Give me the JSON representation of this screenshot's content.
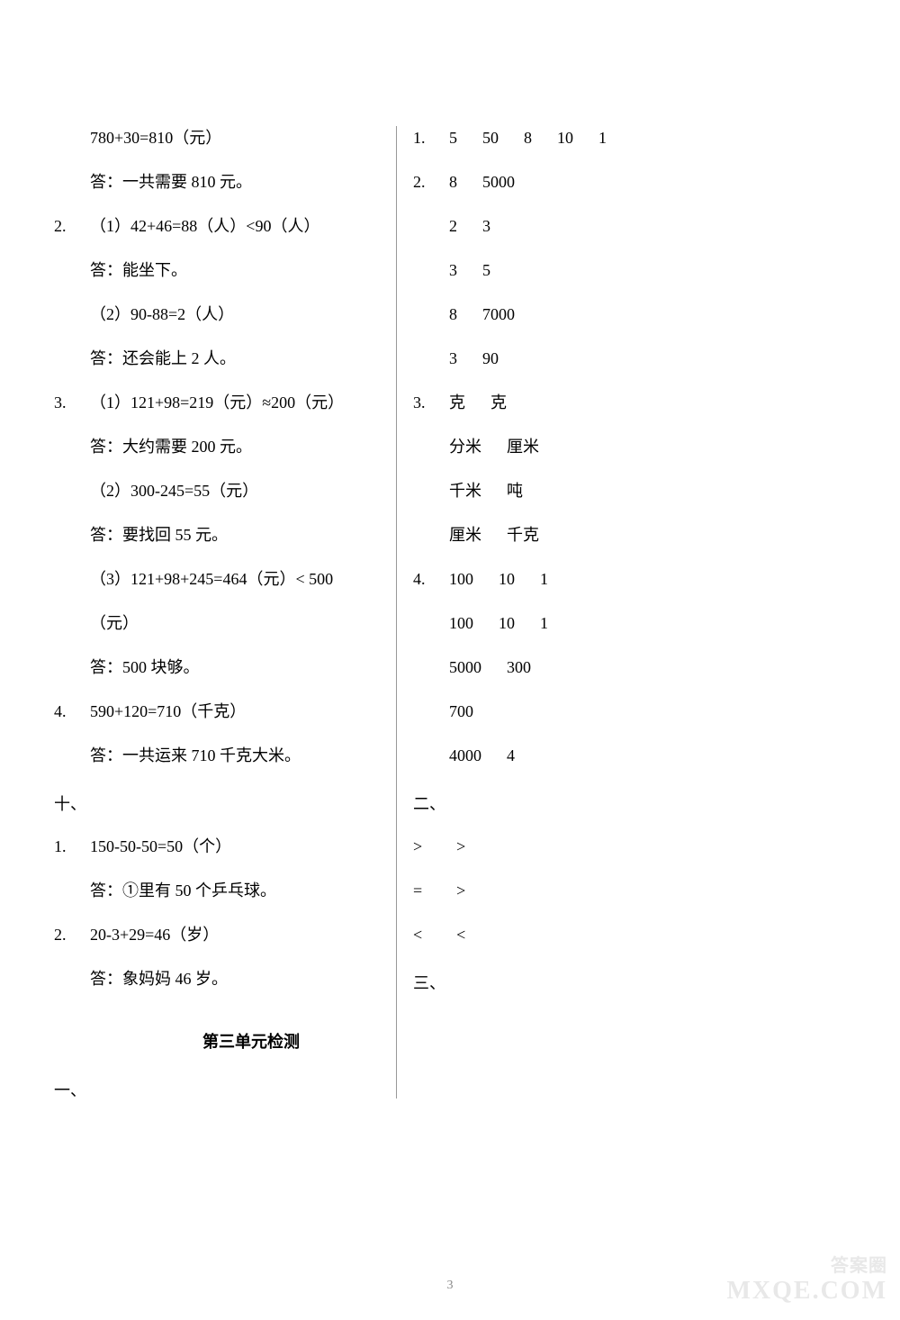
{
  "left": {
    "l1": "780+30=810（元）",
    "l2": "答：一共需要 810 元。",
    "n2": "2.",
    "l3": "（1）42+46=88（人）<90（人）",
    "l4": "答：能坐下。",
    "l5": "（2）90-88=2（人）",
    "l6": "答：还会能上 2 人。",
    "n3": "3.",
    "l7": "（1）121+98=219（元）≈200（元）",
    "l8": "答：大约需要 200 元。",
    "l9": "（2）300-245=55（元）",
    "l10": "答：要找回 55 元。",
    "l11": "（3）121+98+245=464（元）< 500",
    "l12": "（元）",
    "l13": "答：500 块够。",
    "n4": "4.",
    "l14": "590+120=710（千克）",
    "l15": "答：一共运来 710 千克大米。",
    "s10": "十、",
    "n10_1": "1.",
    "l16": "150-50-50=50（个）",
    "l17": "答：①里有 50 个乒乓球。",
    "n10_2": "2.",
    "l18": "20-3+29=46（岁）",
    "l19": "答：象妈妈 46 岁。",
    "unit_title": "第三单元检测",
    "s1": "一、"
  },
  "right": {
    "n1": "1.",
    "r1": [
      "5",
      "50",
      "8",
      "10",
      "1"
    ],
    "n2": "2.",
    "r2": [
      "8",
      "5000"
    ],
    "r3": [
      "2",
      "3"
    ],
    "r4": [
      "3",
      "5"
    ],
    "r5": [
      "8",
      "7000"
    ],
    "r6": [
      "3",
      "90"
    ],
    "n3": "3.",
    "r7": [
      "克",
      "克"
    ],
    "r8": [
      "分米",
      "厘米"
    ],
    "r9": [
      "千米",
      "吨"
    ],
    "r10": [
      "厘米",
      "千克"
    ],
    "n4": "4.",
    "r11": [
      "100",
      "10",
      "1"
    ],
    "r12": [
      "100",
      "10",
      "1"
    ],
    "r13": [
      "5000",
      "300"
    ],
    "r14": [
      "700"
    ],
    "r15": [
      "4000",
      "4"
    ],
    "s2": "二、",
    "c1": [
      ">",
      ">"
    ],
    "c2": [
      "=",
      ">"
    ],
    "c3": [
      "<",
      "<"
    ],
    "s3": "三、"
  },
  "page_number": "3",
  "watermark_top": "答案圈",
  "watermark_bottom": "MXQE.COM"
}
